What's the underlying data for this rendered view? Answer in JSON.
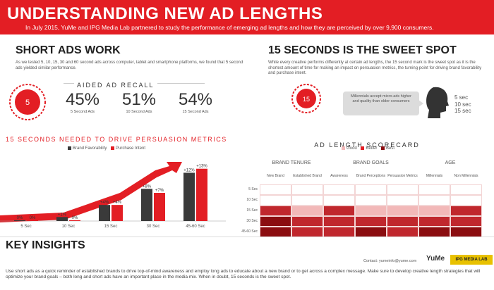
{
  "header": {
    "title": "UNDERSTANDING NEW AD LENGTHS",
    "intro": "In July 2015, YuMe and IPG Media Lab partnered to study the performance of emerging ad lengths and how they are perceived by over 9,900 consumers."
  },
  "short_ads": {
    "title": "SHORT ADS WORK",
    "body": "As we tested 5, 10, 15, 30 and 60 second ads across computer, tablet and smartphone platforms, we found that 5 second ads yielded similar performance.",
    "timer_label": "5",
    "recall_title": "AIDED AD RECALL",
    "stats": [
      {
        "value": "45%",
        "caption": "5 Second Ads"
      },
      {
        "value": "51%",
        "caption": "10 Second Ads"
      },
      {
        "value": "54%",
        "caption": "15 Second Ads"
      }
    ]
  },
  "sweet_spot": {
    "title": "15 SECONDS IS THE SWEET SPOT",
    "body": "While every creative performs differently at certain ad lengths, the 15 second mark is the sweet spot as it is the shortest amount of time for making an impact on persuasion metrics, the turning point for driving brand favorability and purchase intent.",
    "timer_label": "15",
    "bubble": "Millennials accept micro-ads higher and quality than older consumers",
    "lengths": [
      "5 sec",
      "10 sec",
      "15 sec"
    ]
  },
  "chart_data": {
    "type": "bar",
    "title": "15 SECONDS NEEDED TO DRIVE PERSUASION METRICS",
    "categories": [
      "5 Sec",
      "10 Sec",
      "15 Sec",
      "30 Sec",
      "45-60 Sec"
    ],
    "series": [
      {
        "name": "Brand Favorability",
        "values": [
          0,
          1,
          4,
          8,
          12
        ],
        "labels": [
          "0%",
          "+1%",
          "+4%",
          "+8%",
          "+12%"
        ],
        "color": "#3a3a3a"
      },
      {
        "name": "Purchase Intent",
        "values": [
          0,
          0,
          4,
          7,
          13
        ],
        "labels": [
          "0%",
          "0%",
          "+4%",
          "+7%",
          "+13%"
        ],
        "color": "#e31e24"
      }
    ],
    "ylim": [
      0,
      14
    ]
  },
  "scorecard": {
    "title": "AD LENGTH SCORECARD",
    "legend": [
      {
        "label": "Good",
        "color": "#f2b8b8"
      },
      {
        "label": "Better",
        "color": "#e31e24"
      },
      {
        "label": "Best",
        "color": "#8b0d10"
      }
    ],
    "groups": [
      "BRAND TENURE",
      "BRAND GOALS",
      "AGE"
    ],
    "columns": [
      "New Brand",
      "Established Brand",
      "Awareness",
      "Brand Perceptions",
      "Persuasion Metrics",
      "Millennials",
      "Non Millennials"
    ],
    "rows": [
      "5 Sec",
      "10 Sec",
      "15 Sec",
      "30 Sec",
      "45-60 Sec"
    ],
    "cells": [
      [
        0,
        0,
        0,
        0,
        0,
        0,
        0
      ],
      [
        0,
        0,
        0,
        0,
        0,
        0,
        0
      ],
      [
        2,
        1,
        2,
        1,
        1,
        1,
        2
      ],
      [
        3,
        2,
        2,
        2,
        2,
        2,
        2
      ],
      [
        3,
        2,
        2,
        3,
        2,
        3,
        3
      ]
    ],
    "cell_colors": [
      "#ffffff",
      "#f2b8b8",
      "#c0272d",
      "#8b0d10"
    ]
  },
  "footer": {
    "title": "KEY INSIGHTS",
    "contact": "Contact: yumeinfo@yume.com",
    "brand1": "YuMe",
    "brand2": "IPG MEDIA LAB",
    "body": "Use short ads as a quick reminder of established brands to drive top-of-mind awareness and employ long ads to educate about a new brand or to get across a complex message. Make sure to develop creative length strategies that will optimize your brand goals – both long and short ads have an important place in the media mix. When in doubt, 15 seconds is the sweet spot."
  }
}
